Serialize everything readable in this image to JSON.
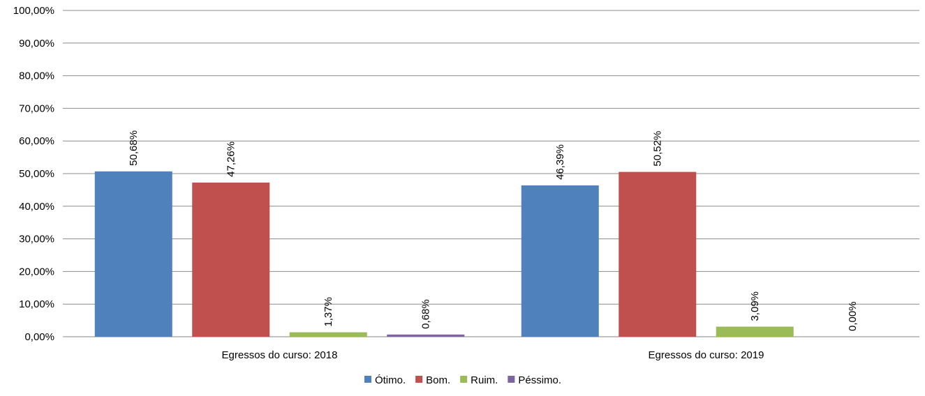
{
  "chart_data": {
    "type": "bar",
    "categories": [
      "Egressos do curso: 2018",
      "Egressos do curso: 2019"
    ],
    "series": [
      {
        "name": "Ótimo.",
        "color": "#4F81BD",
        "values": [
          50.68,
          46.39
        ],
        "labels": [
          "50,68%",
          "46,39%"
        ]
      },
      {
        "name": "Bom.",
        "color": "#C0504D",
        "values": [
          47.26,
          50.52
        ],
        "labels": [
          "47,26%",
          "50,52%"
        ]
      },
      {
        "name": "Ruim.",
        "color": "#9BBB59",
        "values": [
          1.37,
          3.09
        ],
        "labels": [
          "1,37%",
          "3,09%"
        ]
      },
      {
        "name": "Péssimo.",
        "color": "#8064A2",
        "values": [
          0.68,
          0.0
        ],
        "labels": [
          "0,68%",
          "0,00%"
        ]
      }
    ],
    "yticks": [
      "0,00%",
      "10,00%",
      "20,00%",
      "30,00%",
      "40,00%",
      "50,00%",
      "60,00%",
      "70,00%",
      "80,00%",
      "90,00%",
      "100,00%"
    ],
    "ylim": [
      0,
      100
    ],
    "grid": true,
    "legend_position": "bottom"
  }
}
